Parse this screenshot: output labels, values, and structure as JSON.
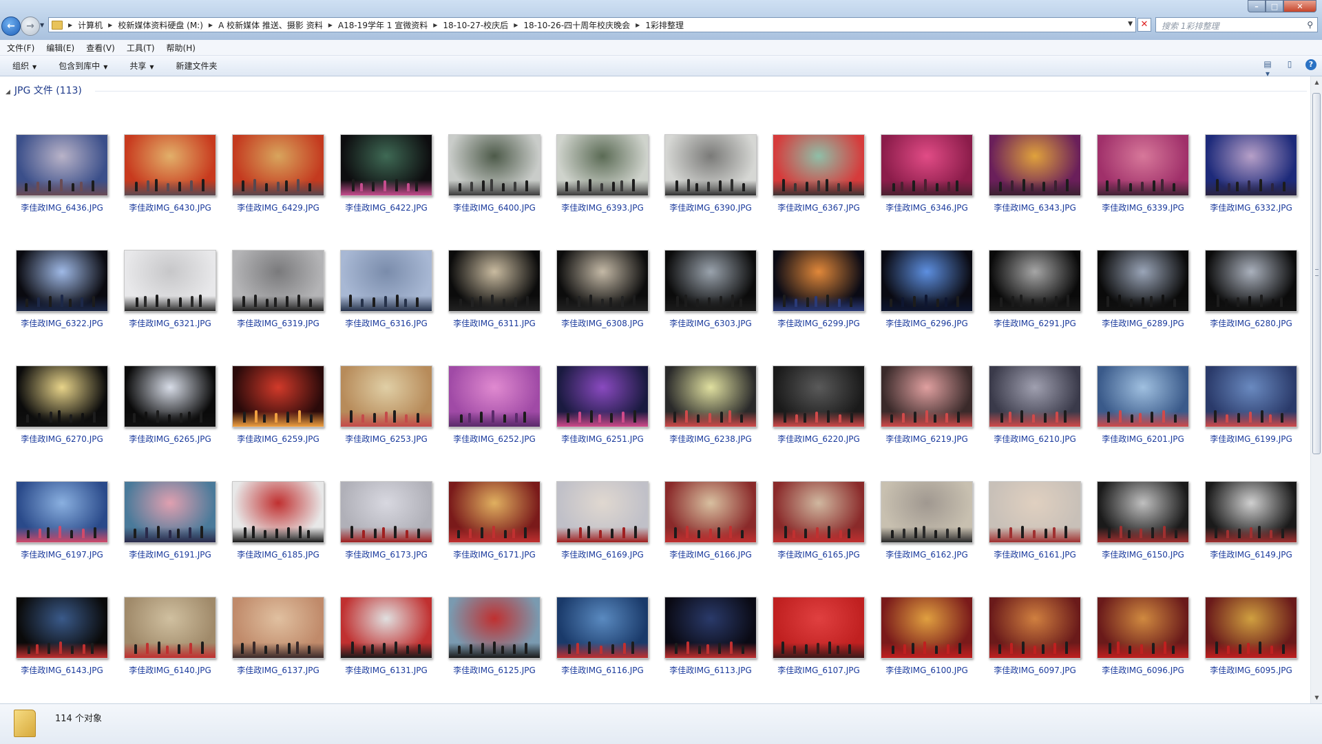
{
  "addressbar": {
    "crumbs": [
      "计算机",
      "校新媒体资料硬盘 (M:)",
      "A 校新媒体 推送、摄影 资料",
      "A18-19学年 1 宣微资料",
      "18-10-27-校庆后",
      "18-10-26-四十周年校庆晚会",
      "1彩排整理"
    ],
    "search_placeholder": "搜索 1彩排整理"
  },
  "menubar": {
    "items": [
      "文件(F)",
      "编辑(E)",
      "查看(V)",
      "工具(T)",
      "帮助(H)"
    ]
  },
  "cmdbar": {
    "organize": "组织",
    "include_library": "包含到库中",
    "share": "共享",
    "new_folder": "新建文件夹"
  },
  "group": {
    "label": "JPG 文件 (113)"
  },
  "files": [
    {
      "name": "李佳政IMG_6436.JPG",
      "colors": [
        "#3b4f8a",
        "#b9b3c8",
        "#6a4b54"
      ]
    },
    {
      "name": "李佳政IMG_6430.JPG",
      "colors": [
        "#c83a1e",
        "#e2b06a",
        "#5b4a52"
      ]
    },
    {
      "name": "李佳政IMG_6429.JPG",
      "colors": [
        "#c43a1f",
        "#d8a55d",
        "#56474f"
      ]
    },
    {
      "name": "李佳政IMG_6422.JPG",
      "colors": [
        "#0d0d0f",
        "#3f6a55",
        "#c64d8e"
      ]
    },
    {
      "name": "李佳政IMG_6400.JPG",
      "colors": [
        "#c9ccc9",
        "#4d5a49",
        "#3b3b3b"
      ]
    },
    {
      "name": "李佳政IMG_6393.JPG",
      "colors": [
        "#cfd3cc",
        "#5b6b55",
        "#3a3a3a"
      ]
    },
    {
      "name": "李佳政IMG_6390.JPG",
      "colors": [
        "#d6d7d4",
        "#7a7a78",
        "#2f2f2f"
      ]
    },
    {
      "name": "李佳政IMG_6367.JPG",
      "colors": [
        "#d63b3b",
        "#8fbfa8",
        "#3b3434"
      ]
    },
    {
      "name": "李佳政IMG_6346.JPG",
      "colors": [
        "#8b1c4a",
        "#e14c86",
        "#4a2030"
      ]
    },
    {
      "name": "李佳政IMG_6343.JPG",
      "colors": [
        "#6a1f5a",
        "#e0a23c",
        "#3a2030"
      ]
    },
    {
      "name": "李佳政IMG_6339.JPG",
      "colors": [
        "#a0306a",
        "#d7789a",
        "#402434"
      ]
    },
    {
      "name": "李佳政IMG_6332.JPG",
      "colors": [
        "#1d2a7a",
        "#b7a0c8",
        "#2a2440"
      ]
    },
    {
      "name": "李佳政IMG_6322.JPG",
      "colors": [
        "#0a0a10",
        "#9fb9e6",
        "#1c2848"
      ]
    },
    {
      "name": "李佳政IMG_6321.JPG",
      "colors": [
        "#e8e8ea",
        "#c7c7c9",
        "#2a2a2a"
      ]
    },
    {
      "name": "李佳政IMG_6319.JPG",
      "colors": [
        "#b4b4b6",
        "#7a7a7c",
        "#1e1e1e"
      ]
    },
    {
      "name": "李佳政IMG_6316.JPG",
      "colors": [
        "#a8b8d4",
        "#7a8cab",
        "#26324a"
      ]
    },
    {
      "name": "李佳政IMG_6311.JPG",
      "colors": [
        "#0b0b0b",
        "#c9bba0",
        "#222"
      ]
    },
    {
      "name": "李佳政IMG_6308.JPG",
      "colors": [
        "#0c0c0c",
        "#c4b9a6",
        "#222"
      ]
    },
    {
      "name": "李佳政IMG_6303.JPG",
      "colors": [
        "#0b0b0b",
        "#9aa3ad",
        "#1c1c1c"
      ]
    },
    {
      "name": "李佳政IMG_6299.JPG",
      "colors": [
        "#0a0a14",
        "#e1883a",
        "#2a3a78"
      ]
    },
    {
      "name": "李佳政IMG_6296.JPG",
      "colors": [
        "#0a0a12",
        "#5d8fe0",
        "#0e1630"
      ]
    },
    {
      "name": "李佳政IMG_6291.JPG",
      "colors": [
        "#0a0a0a",
        "#a6a6a6",
        "#1a1a1a"
      ]
    },
    {
      "name": "李佳政IMG_6289.JPG",
      "colors": [
        "#0a0a0a",
        "#9aa5b8",
        "#111"
      ]
    },
    {
      "name": "李佳政IMG_6280.JPG",
      "colors": [
        "#0b0b0b",
        "#aab1bd",
        "#111"
      ]
    },
    {
      "name": "李佳政IMG_6270.JPG",
      "colors": [
        "#0b0b0b",
        "#e8d48a",
        "#111"
      ]
    },
    {
      "name": "李佳政IMG_6265.JPG",
      "colors": [
        "#0a0a0a",
        "#d8dde8",
        "#111"
      ]
    },
    {
      "name": "李佳政IMG_6259.JPG",
      "colors": [
        "#2a0a0a",
        "#d23a2a",
        "#f0a040"
      ]
    },
    {
      "name": "李佳政IMG_6253.JPG",
      "colors": [
        "#b78b5a",
        "#e0cfa6",
        "#c44a4a"
      ]
    },
    {
      "name": "李佳政IMG_6252.JPG",
      "colors": [
        "#a04aa6",
        "#e08ad0",
        "#5a2a6a"
      ]
    },
    {
      "name": "李佳政IMG_6251.JPG",
      "colors": [
        "#1a1a40",
        "#8a4ac0",
        "#d04a8a"
      ]
    },
    {
      "name": "李佳政IMG_6238.JPG",
      "colors": [
        "#2a2a2a",
        "#e0e0a0",
        "#d04a4a"
      ]
    },
    {
      "name": "李佳政IMG_6220.JPG",
      "colors": [
        "#1a1a1a",
        "#5a5a5a",
        "#d04a4a"
      ]
    },
    {
      "name": "李佳政IMG_6219.JPG",
      "colors": [
        "#3a2a2a",
        "#e0a0a0",
        "#d04a4a"
      ]
    },
    {
      "name": "李佳政IMG_6210.JPG",
      "colors": [
        "#3a3a4a",
        "#a0a0b0",
        "#d04a4a"
      ]
    },
    {
      "name": "李佳政IMG_6201.JPG",
      "colors": [
        "#3a5a8a",
        "#a0c0e0",
        "#d04a4a"
      ]
    },
    {
      "name": "李佳政IMG_6199.JPG",
      "colors": [
        "#2a3a6a",
        "#6a8ac0",
        "#d04a4a"
      ]
    },
    {
      "name": "李佳政IMG_6197.JPG",
      "colors": [
        "#2a4a8a",
        "#8ab0e0",
        "#d04a6a"
      ]
    },
    {
      "name": "李佳政IMG_6191.JPG",
      "colors": [
        "#4a7a9a",
        "#e0a0b0",
        "#2a2a4a"
      ]
    },
    {
      "name": "李佳政IMG_6185.JPG",
      "colors": [
        "#e8e8e8",
        "#c03030",
        "#1a1a1a"
      ]
    },
    {
      "name": "李佳政IMG_6173.JPG",
      "colors": [
        "#b0b0b8",
        "#d8d8e0",
        "#a02020"
      ]
    },
    {
      "name": "李佳政IMG_6171.JPG",
      "colors": [
        "#7a1a1a",
        "#e0b060",
        "#c03030"
      ]
    },
    {
      "name": "李佳政IMG_6169.JPG",
      "colors": [
        "#c0c0c8",
        "#e0d8d0",
        "#a02020"
      ]
    },
    {
      "name": "李佳政IMG_6166.JPG",
      "colors": [
        "#8a2a2a",
        "#d8c0a0",
        "#c03030"
      ]
    },
    {
      "name": "李佳政IMG_6165.JPG",
      "colors": [
        "#8a2a2a",
        "#d0b8a0",
        "#c03030"
      ]
    },
    {
      "name": "李佳政IMG_6162.JPG",
      "colors": [
        "#c8c0b0",
        "#a09890",
        "#2a2a2a"
      ]
    },
    {
      "name": "李佳政IMG_6161.JPG",
      "colors": [
        "#c8c0b8",
        "#e0d0c0",
        "#a03030"
      ]
    },
    {
      "name": "李佳政IMG_6150.JPG",
      "colors": [
        "#1a1a1a",
        "#c0c0c0",
        "#a03030"
      ]
    },
    {
      "name": "李佳政IMG_6149.JPG",
      "colors": [
        "#1a1a1a",
        "#d0d0d0",
        "#a03030"
      ]
    },
    {
      "name": "李佳政IMG_6143.JPG",
      "colors": [
        "#0a0a0a",
        "#3a5a8a",
        "#c03030"
      ]
    },
    {
      "name": "李佳政IMG_6140.JPG",
      "colors": [
        "#a08a6a",
        "#d0c0a0",
        "#c03030"
      ]
    },
    {
      "name": "李佳政IMG_6137.JPG",
      "colors": [
        "#c08a6a",
        "#e0c0a0",
        "#3a2a2a"
      ]
    },
    {
      "name": "李佳政IMG_6131.JPG",
      "colors": [
        "#c03030",
        "#e0e0e0",
        "#1a1a1a"
      ]
    },
    {
      "name": "李佳政IMG_6125.JPG",
      "colors": [
        "#7a9ab0",
        "#c03030",
        "#1a1a1a"
      ]
    },
    {
      "name": "李佳政IMG_6116.JPG",
      "colors": [
        "#1a3a6a",
        "#5a8ac0",
        "#c03030"
      ]
    },
    {
      "name": "李佳政IMG_6113.JPG",
      "colors": [
        "#0a0a14",
        "#2a3a6a",
        "#c03030"
      ]
    },
    {
      "name": "李佳政IMG_6107.JPG",
      "colors": [
        "#c02020",
        "#e04040",
        "#3a1a1a"
      ]
    },
    {
      "name": "李佳政IMG_6100.JPG",
      "colors": [
        "#7a1a1a",
        "#e0a040",
        "#c02020"
      ]
    },
    {
      "name": "李佳政IMG_6097.JPG",
      "colors": [
        "#6a1a1a",
        "#d08040",
        "#c02020"
      ]
    },
    {
      "name": "李佳政IMG_6096.JPG",
      "colors": [
        "#6a1a1a",
        "#d08a40",
        "#c02020"
      ]
    },
    {
      "name": "李佳政IMG_6095.JPG",
      "colors": [
        "#6a1a1a",
        "#d0a040",
        "#c02020"
      ]
    }
  ],
  "status": {
    "count_text": "114 个对象"
  }
}
